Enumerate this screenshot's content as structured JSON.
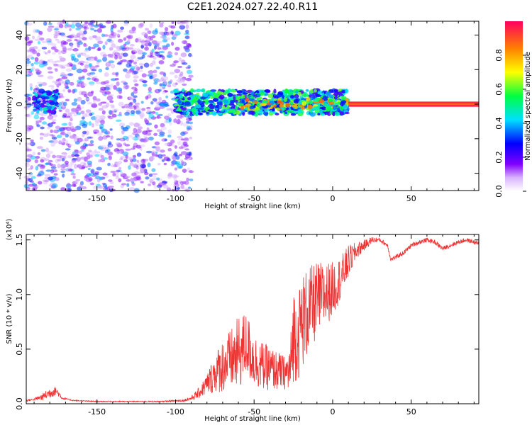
{
  "title": "C2E1.2024.027.22.40.R11",
  "chart_data": [
    {
      "type": "heatmap",
      "name": "spectrogram",
      "xlabel": "Height of straight line (km)",
      "ylabel": "Frequency (Hz)",
      "xlim": [
        -195,
        93
      ],
      "ylim": [
        -50,
        48
      ],
      "x_ticks": [
        -150,
        -100,
        -50,
        0,
        50
      ],
      "y_ticks": [
        -40,
        -20,
        0,
        20,
        40
      ],
      "colorbar": {
        "label": "Normalized spectral amplitude",
        "range": [
          0,
          1
        ],
        "ticks": [
          0.0,
          0.2,
          0.4,
          0.6,
          0.8
        ],
        "tick_labels": [
          "0.0",
          "0.2",
          "0.4",
          "0.6",
          "0.8"
        ],
        "colors": [
          "#ffffff",
          "#c080ff",
          "#7000ff",
          "#0000ff",
          "#00e0ff",
          "#00ff40",
          "#ffff00",
          "#ff8000",
          "#ff0060"
        ]
      },
      "regions": [
        {
          "x_range": [
            -195,
            -90
          ],
          "freq_range": [
            -50,
            48
          ],
          "level": 0.12,
          "note_level_peak": 0.35
        },
        {
          "x_range": [
            -190,
            -175
          ],
          "freq_range": [
            -5,
            8
          ],
          "level": 0.35
        },
        {
          "x_range": [
            -100,
            10
          ],
          "freq_range": [
            -6,
            8
          ],
          "level": 0.45
        },
        {
          "x_range": [
            -60,
            10
          ],
          "freq_range": [
            -3,
            3
          ],
          "level": 0.65
        },
        {
          "x_range": [
            10,
            93
          ],
          "freq_range": [
            -1.5,
            1.5
          ],
          "level": 0.95
        }
      ]
    },
    {
      "type": "line",
      "name": "snr",
      "xlabel": "Height of straight line (km)",
      "ylabel": "SNR (10 * v/v)",
      "yscale_label": "(x10⁴)",
      "xlim": [
        -195,
        93
      ],
      "ylim": [
        0,
        1.55
      ],
      "x_ticks": [
        -150,
        -100,
        -50,
        0,
        50
      ],
      "y_ticks": [
        0.0,
        0.5,
        1.0,
        1.5
      ],
      "y_tick_labels": [
        "0.0",
        "0.5",
        "1.0",
        "1.5"
      ],
      "color": "#ee3333",
      "series": [
        {
          "x": [
            -195,
            -190,
            -185,
            -180,
            -176,
            -172,
            -165,
            -150,
            -130,
            -110,
            -95,
            -90,
            -85,
            -80,
            -75,
            -70,
            -65,
            -60,
            -55,
            -50,
            -45,
            -40,
            -35,
            -30,
            -27,
            -25,
            -22,
            -20,
            -15,
            -10,
            -5,
            0,
            5,
            10,
            15,
            20,
            25,
            30,
            35,
            37,
            40,
            45,
            50,
            55,
            60,
            65,
            70,
            75,
            80,
            85,
            90,
            93
          ],
          "y": [
            0.03,
            0.04,
            0.06,
            0.1,
            0.12,
            0.05,
            0.03,
            0.02,
            0.02,
            0.02,
            0.03,
            0.05,
            0.1,
            0.18,
            0.28,
            0.35,
            0.4,
            0.45,
            0.55,
            0.4,
            0.35,
            0.32,
            0.3,
            0.28,
            0.3,
            0.65,
            0.6,
            0.75,
            0.85,
            0.95,
            1.0,
            1.05,
            1.15,
            1.3,
            1.4,
            1.45,
            1.5,
            1.5,
            1.45,
            1.32,
            1.34,
            1.38,
            1.45,
            1.48,
            1.5,
            1.48,
            1.42,
            1.45,
            1.48,
            1.5,
            1.48,
            1.47
          ],
          "noise": [
            0.01,
            0.01,
            0.03,
            0.05,
            0.04,
            0.01,
            0.005,
            0.005,
            0.005,
            0.005,
            0.01,
            0.02,
            0.05,
            0.1,
            0.18,
            0.25,
            0.28,
            0.35,
            0.3,
            0.25,
            0.22,
            0.2,
            0.18,
            0.15,
            0.25,
            0.45,
            0.4,
            0.45,
            0.4,
            0.35,
            0.3,
            0.25,
            0.2,
            0.15,
            0.08,
            0.05,
            0.03,
            0.02,
            0.02,
            0.02,
            0.02,
            0.02,
            0.02,
            0.02,
            0.02,
            0.02,
            0.02,
            0.02,
            0.02,
            0.02,
            0.02,
            0.02
          ]
        }
      ]
    }
  ]
}
